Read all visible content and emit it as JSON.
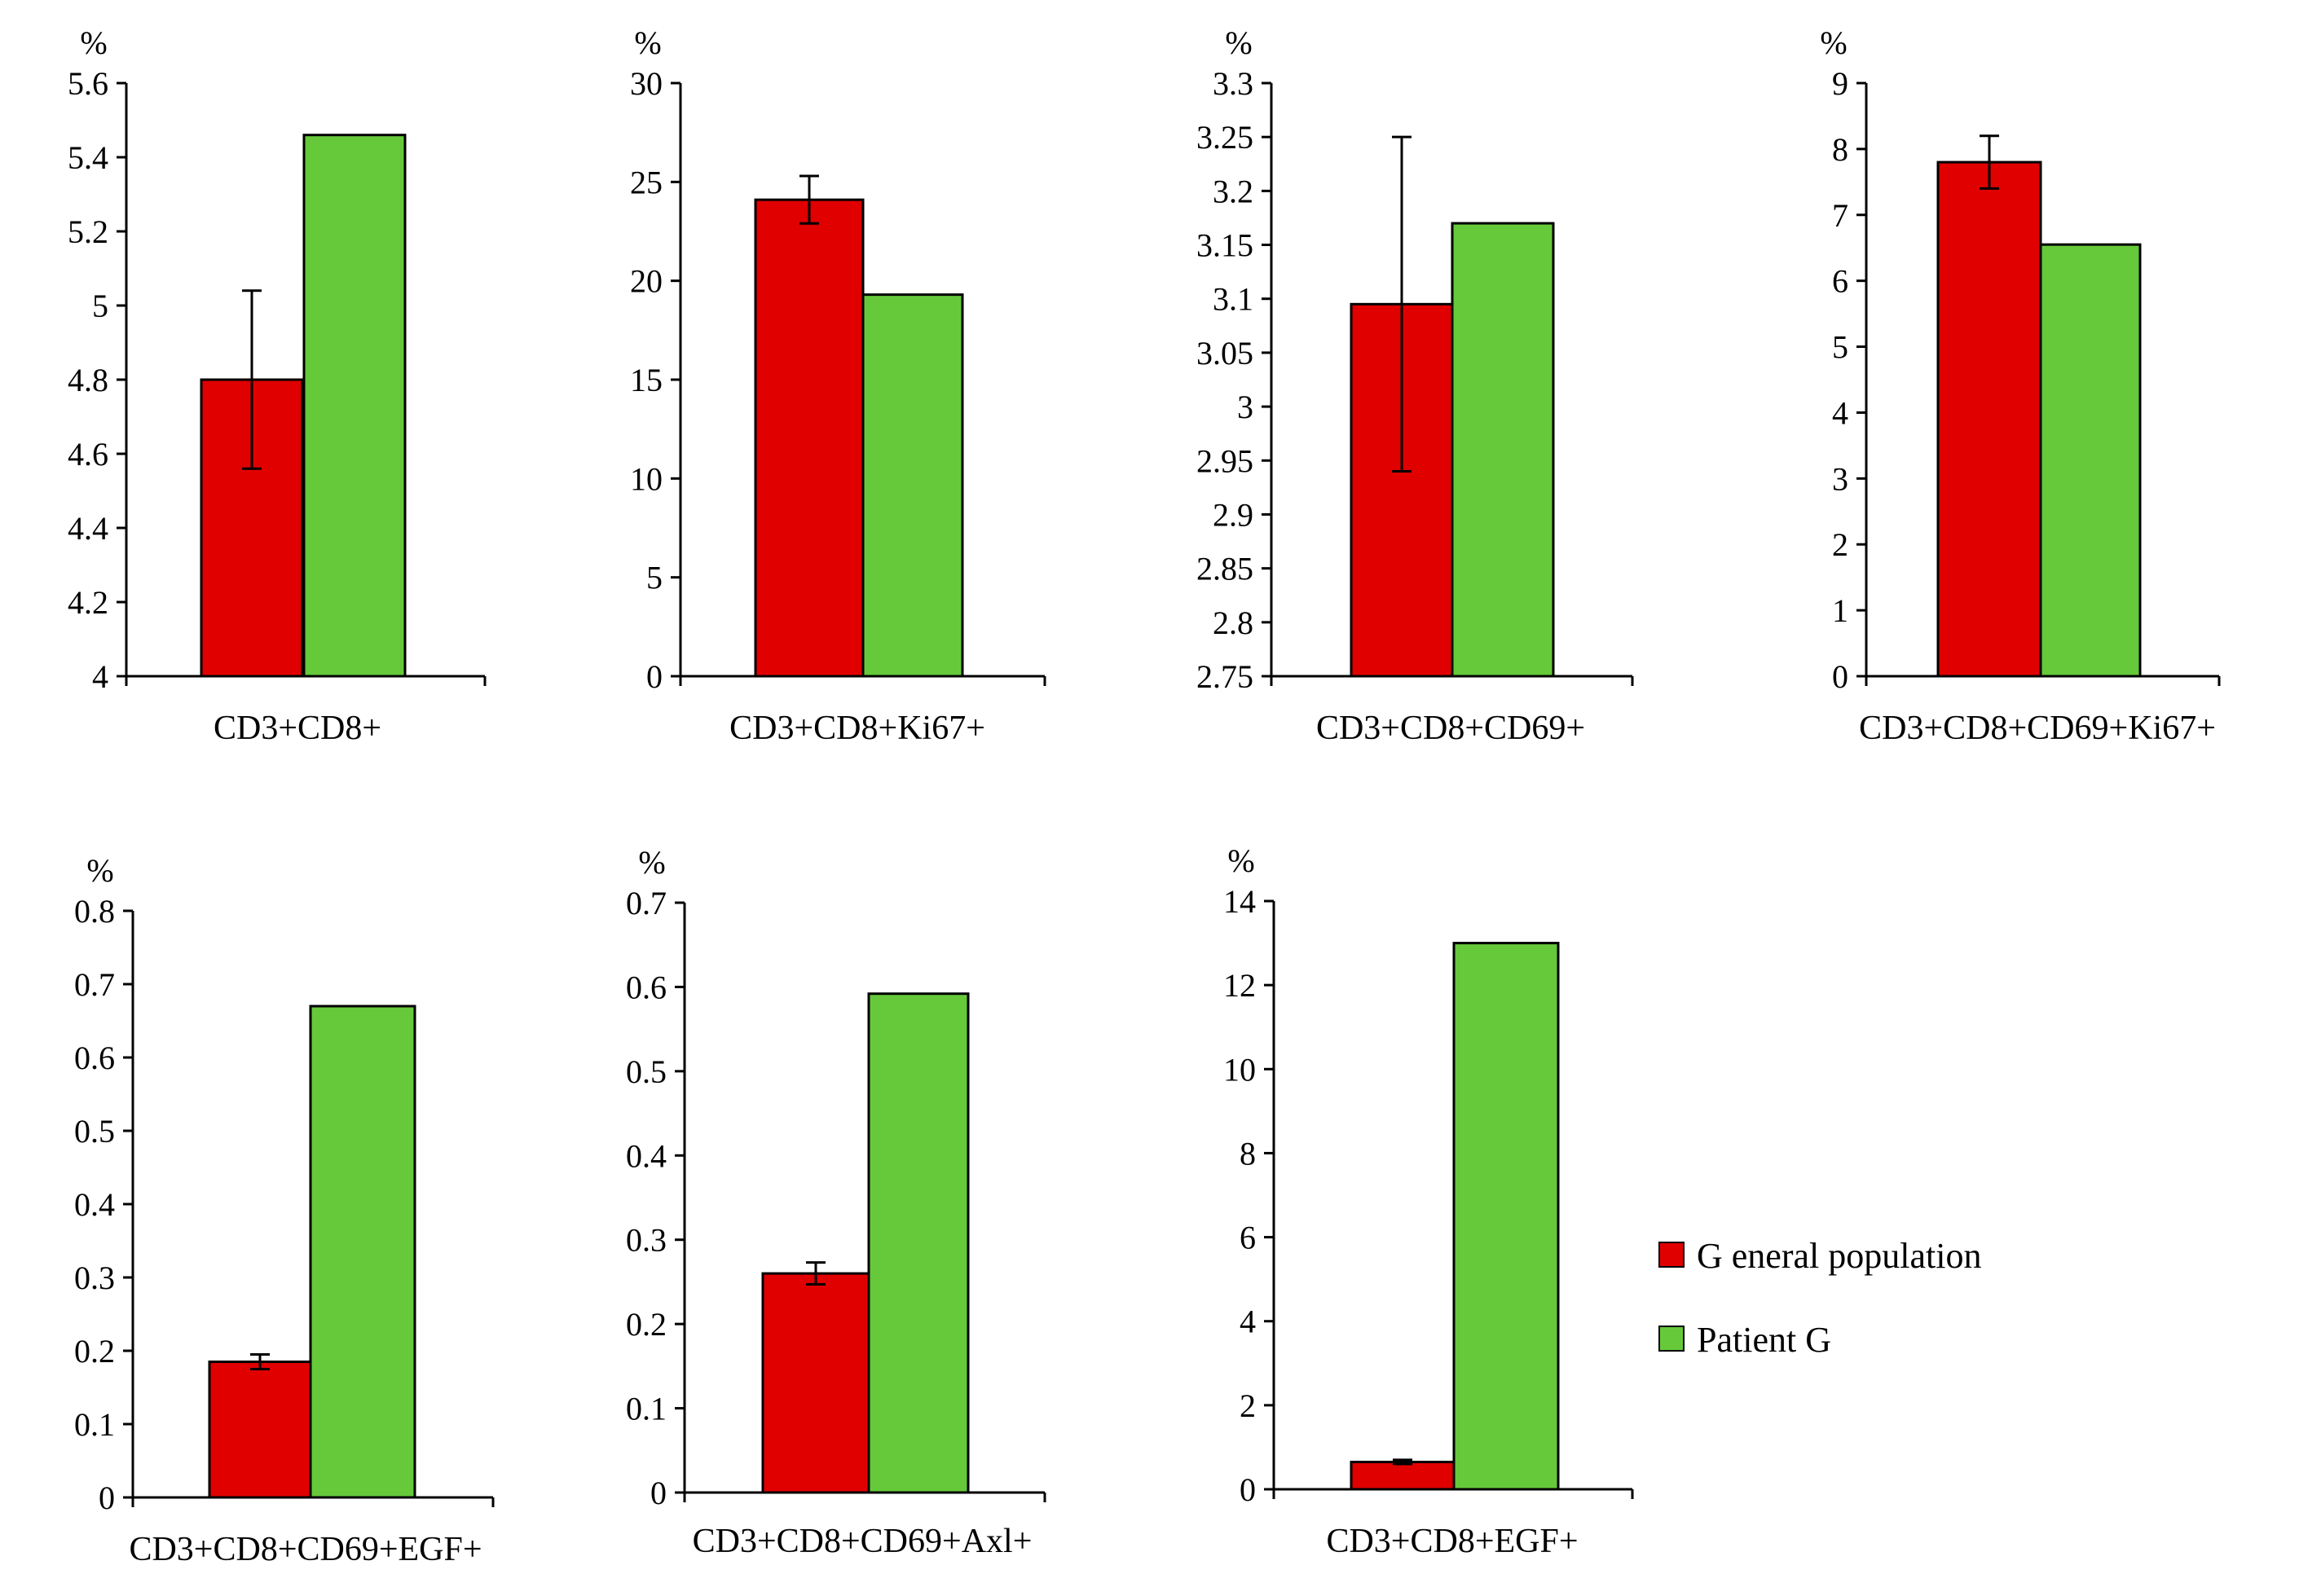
{
  "colors": {
    "general": "#e00000",
    "patient": "#66c93a",
    "outline": "#000000"
  },
  "legend": {
    "general_label": "G eneral population",
    "patient_label": "Patient G"
  },
  "chart_data": [
    {
      "type": "bar",
      "title": "",
      "unit_label": "%",
      "category": "CD3+CD8+",
      "ylim": [
        4,
        5.6
      ],
      "yticks": [
        "4",
        "4.2",
        "4.4",
        "4.6",
        "4.8",
        "5",
        "5.2",
        "5.4",
        "5.6"
      ],
      "series": [
        {
          "name": "General population",
          "value": 4.8,
          "err": 0.24
        },
        {
          "name": "Patient G",
          "value": 5.46,
          "err": 0
        }
      ]
    },
    {
      "type": "bar",
      "title": "",
      "unit_label": "%",
      "category": "CD3+CD8+Ki67+",
      "ylim": [
        0,
        30
      ],
      "yticks": [
        "0",
        "5",
        "10",
        "15",
        "20",
        "25",
        "30"
      ],
      "series": [
        {
          "name": "General population",
          "value": 24.1,
          "err": 1.2
        },
        {
          "name": "Patient G",
          "value": 19.3,
          "err": 0
        }
      ]
    },
    {
      "type": "bar",
      "title": "",
      "unit_label": "%",
      "category": "CD3+CD8+CD69+",
      "ylim": [
        2.75,
        3.3
      ],
      "yticks": [
        "2.75",
        "2.8",
        "2.85",
        "2.9",
        "2.95",
        "3",
        "3.05",
        "3.1",
        "3.15",
        "3.2",
        "3.25",
        "3.3"
      ],
      "series": [
        {
          "name": "General population",
          "value": 3.095,
          "err": 0.155
        },
        {
          "name": "Patient G",
          "value": 3.17,
          "err": 0
        }
      ]
    },
    {
      "type": "bar",
      "title": "",
      "unit_label": "%",
      "category": "CD3+CD8+CD69+Ki67+",
      "ylim": [
        0,
        9
      ],
      "yticks": [
        "0",
        "1",
        "2",
        "3",
        "4",
        "5",
        "6",
        "7",
        "8",
        "9"
      ],
      "series": [
        {
          "name": "General population",
          "value": 7.8,
          "err": 0.4
        },
        {
          "name": "Patient G",
          "value": 6.55,
          "err": 0
        }
      ]
    },
    {
      "type": "bar",
      "title": "",
      "unit_label": "%",
      "category": "CD3+CD8+CD69+EGF+",
      "ylim": [
        0,
        0.8
      ],
      "yticks": [
        "0",
        "0.1",
        "0.2",
        "0.3",
        "0.4",
        "0.5",
        "0.6",
        "0.7",
        "0.8"
      ],
      "series": [
        {
          "name": "General population",
          "value": 0.185,
          "err": 0.01
        },
        {
          "name": "Patient G",
          "value": 0.67,
          "err": 0
        }
      ]
    },
    {
      "type": "bar",
      "title": "",
      "unit_label": "%",
      "category": "CD3+CD8+CD69+Axl+",
      "ylim": [
        0,
        0.7
      ],
      "yticks": [
        "0",
        "0.1",
        "0.2",
        "0.3",
        "0.4",
        "0.5",
        "0.6",
        "0.7"
      ],
      "series": [
        {
          "name": "General population",
          "value": 0.26,
          "err": 0.013
        },
        {
          "name": "Patient G",
          "value": 0.592,
          "err": 0
        }
      ]
    },
    {
      "type": "bar",
      "title": "",
      "unit_label": "%",
      "category": "CD3+CD8+EGF+",
      "ylim": [
        0,
        14
      ],
      "yticks": [
        "0",
        "2",
        "4",
        "6",
        "8",
        "10",
        "12",
        "14"
      ],
      "series": [
        {
          "name": "General population",
          "value": 0.65,
          "err": 0.05
        },
        {
          "name": "Patient G",
          "value": 13.0,
          "err": 0
        }
      ]
    }
  ]
}
